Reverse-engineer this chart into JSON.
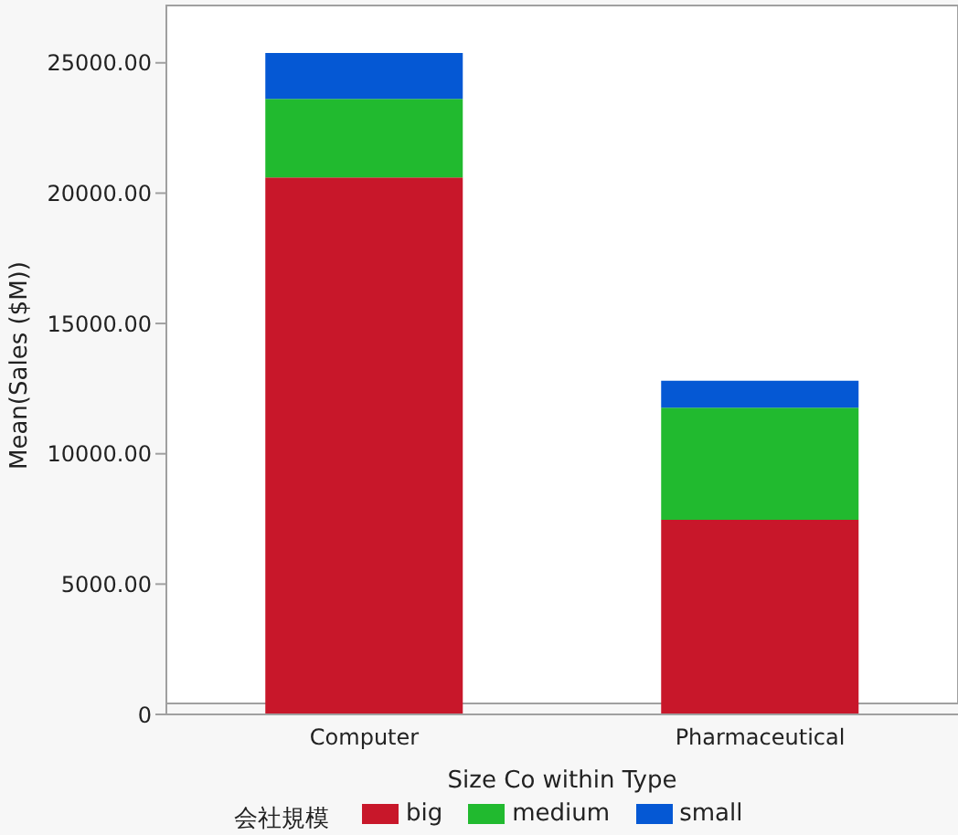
{
  "chart_data": {
    "type": "bar",
    "stacked": true,
    "xlabel": "Size Co within Type",
    "ylabel": "Mean(Sales ($M))",
    "legend_title": "会社規模",
    "legend": "bottom",
    "grid": false,
    "categories": [
      "Computer",
      "Pharmaceutical"
    ],
    "series": [
      {
        "name": "big",
        "color": "#c8172a",
        "values": [
          20600,
          7470
        ]
      },
      {
        "name": "medium",
        "color": "#21ba2f",
        "values": [
          3020,
          4300
        ]
      },
      {
        "name": "small",
        "color": "#0558d4",
        "values": [
          1760,
          1030
        ]
      }
    ],
    "ylim": [
      0,
      27200
    ],
    "yticks": [
      {
        "value": 0,
        "label": "0"
      },
      {
        "value": 5000,
        "label": "5000.00"
      },
      {
        "value": 10000,
        "label": "10000.00"
      },
      {
        "value": 15000,
        "label": "15000.00"
      },
      {
        "value": 20000,
        "label": "20000.00"
      },
      {
        "value": 25000,
        "label": "25000.00"
      }
    ]
  }
}
